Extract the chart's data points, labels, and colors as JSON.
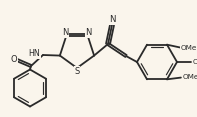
{
  "bg_color": "#faf5ec",
  "line_color": "#2a2a2a",
  "line_width": 1.3,
  "lw_double_inner": 0.85,
  "atoms": {
    "N_topleft": "N",
    "N_topright": "N",
    "S_bottom": "S",
    "NH": "HN",
    "O": "O",
    "N_cyano": "N",
    "OMe1": "OMe",
    "OMe2": "OMe",
    "OMe3": "OMe"
  }
}
